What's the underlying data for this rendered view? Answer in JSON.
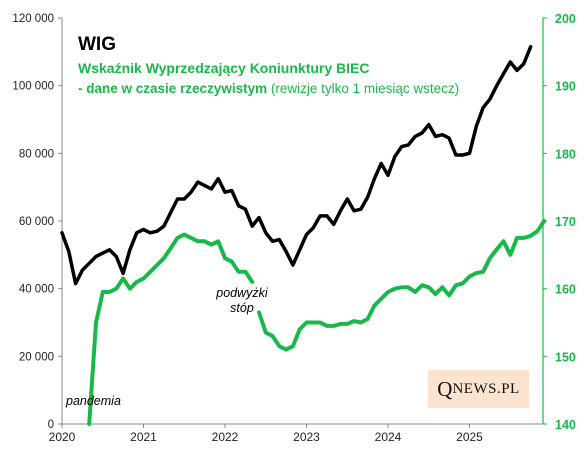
{
  "chart_data": {
    "type": "line",
    "title": "WIG",
    "subtitle": "Wskaźnik Wyprzedzający Koniunktury BIEC",
    "note_bold": "- dane w czasie rzeczywistym",
    "note_rest": " (rewizje tylko 1 miesiąc wstecz)",
    "x_ticks": [
      "2020",
      "2021",
      "2022",
      "2023",
      "2024",
      "2025"
    ],
    "y_left_ticks": [
      "0",
      "20 000",
      "40 000",
      "60 000",
      "80 000",
      "100 000",
      "120 000"
    ],
    "y_right_ticks": [
      "140",
      "150",
      "160",
      "170",
      "180",
      "190",
      "200"
    ],
    "y_left_lim": [
      0,
      120000
    ],
    "y_right_lim": [
      140,
      200
    ],
    "x_lim": [
      "2020-01",
      "2025-12"
    ],
    "grid": false,
    "colors": {
      "wig": "#000000",
      "biec": "#19b84a",
      "right_axis": "#19b84a",
      "logo_bg": "#fbe3cf"
    },
    "series": [
      {
        "name": "WIG",
        "axis": "left",
        "points": [
          [
            "2020-01",
            56500
          ],
          [
            "2020-02",
            51000
          ],
          [
            "2020-03",
            41500
          ],
          [
            "2020-04",
            45500
          ],
          [
            "2020-05",
            47500
          ],
          [
            "2020-06",
            49500
          ],
          [
            "2020-07",
            50500
          ],
          [
            "2020-08",
            51500
          ],
          [
            "2020-09",
            49500
          ],
          [
            "2020-10",
            44500
          ],
          [
            "2020-11",
            51500
          ],
          [
            "2020-12",
            56500
          ],
          [
            "2021-01",
            57500
          ],
          [
            "2021-02",
            56500
          ],
          [
            "2021-03",
            57000
          ],
          [
            "2021-04",
            58500
          ],
          [
            "2021-05",
            62500
          ],
          [
            "2021-06",
            66500
          ],
          [
            "2021-07",
            66500
          ],
          [
            "2021-08",
            68500
          ],
          [
            "2021-09",
            71500
          ],
          [
            "2021-10",
            70500
          ],
          [
            "2021-11",
            69500
          ],
          [
            "2021-12",
            72500
          ],
          [
            "2022-01",
            68500
          ],
          [
            "2022-02",
            69000
          ],
          [
            "2022-03",
            64500
          ],
          [
            "2022-04",
            63500
          ],
          [
            "2022-05",
            58500
          ],
          [
            "2022-06",
            61000
          ],
          [
            "2022-07",
            56500
          ],
          [
            "2022-08",
            54000
          ],
          [
            "2022-09",
            54500
          ],
          [
            "2022-10",
            51000
          ],
          [
            "2022-11",
            47000
          ],
          [
            "2022-12",
            51500
          ],
          [
            "2023-01",
            56000
          ],
          [
            "2023-02",
            58000
          ],
          [
            "2023-03",
            61500
          ],
          [
            "2023-04",
            61500
          ],
          [
            "2023-05",
            59000
          ],
          [
            "2023-06",
            63000
          ],
          [
            "2023-07",
            66500
          ],
          [
            "2023-08",
            63000
          ],
          [
            "2023-09",
            63500
          ],
          [
            "2023-10",
            67000
          ],
          [
            "2023-11",
            72500
          ],
          [
            "2023-12",
            77000
          ],
          [
            "2024-01",
            73500
          ],
          [
            "2024-02",
            79000
          ],
          [
            "2024-03",
            82000
          ],
          [
            "2024-04",
            82500
          ],
          [
            "2024-05",
            85000
          ],
          [
            "2024-06",
            86000
          ],
          [
            "2024-07",
            88500
          ],
          [
            "2024-08",
            85000
          ],
          [
            "2024-09",
            85500
          ],
          [
            "2024-10",
            84500
          ],
          [
            "2024-11",
            79500
          ],
          [
            "2024-12",
            79500
          ],
          [
            "2025-01",
            80000
          ],
          [
            "2025-02",
            88000
          ],
          [
            "2025-03",
            93500
          ],
          [
            "2025-04",
            96000
          ],
          [
            "2025-05",
            100000
          ],
          [
            "2025-06",
            103500
          ],
          [
            "2025-07",
            107000
          ],
          [
            "2025-08",
            104500
          ],
          [
            "2025-09",
            106500
          ],
          [
            "2025-10",
            111500
          ]
        ]
      },
      {
        "name": "Wskaźnik Wyprzedzający Koniunktury BIEC",
        "axis": "right",
        "segments": [
          [
            [
              "2020-05",
              140.0
            ],
            [
              "2020-06",
              155.0
            ],
            [
              "2020-07",
              159.5
            ],
            [
              "2020-08",
              159.5
            ],
            [
              "2020-09",
              160.0
            ],
            [
              "2020-10",
              161.5
            ],
            [
              "2020-11",
              160.0
            ],
            [
              "2020-12",
              161.0
            ],
            [
              "2021-01",
              161.5
            ],
            [
              "2021-02",
              162.5
            ],
            [
              "2021-03",
              163.5
            ],
            [
              "2021-04",
              164.5
            ],
            [
              "2021-05",
              166.0
            ],
            [
              "2021-06",
              167.5
            ],
            [
              "2021-07",
              168.0
            ],
            [
              "2021-08",
              167.5
            ],
            [
              "2021-09",
              167.0
            ],
            [
              "2021-10",
              167.0
            ],
            [
              "2021-11",
              166.5
            ],
            [
              "2021-12",
              167.0
            ],
            [
              "2022-01",
              164.5
            ],
            [
              "2022-02",
              164.0
            ],
            [
              "2022-03",
              162.5
            ],
            [
              "2022-04",
              162.5
            ],
            [
              "2022-05",
              161.0
            ]
          ],
          [
            [
              "2022-06",
              156.5
            ],
            [
              "2022-07",
              153.5
            ],
            [
              "2022-08",
              153.0
            ],
            [
              "2022-09",
              151.5
            ],
            [
              "2022-10",
              151.0
            ],
            [
              "2022-11",
              151.5
            ],
            [
              "2022-12",
              154.0
            ],
            [
              "2023-01",
              155.0
            ],
            [
              "2023-02",
              155.0
            ],
            [
              "2023-03",
              155.0
            ],
            [
              "2023-04",
              154.5
            ],
            [
              "2023-05",
              154.5
            ],
            [
              "2023-06",
              154.8
            ],
            [
              "2023-07",
              154.8
            ],
            [
              "2023-08",
              155.2
            ],
            [
              "2023-09",
              155.0
            ],
            [
              "2023-10",
              155.5
            ],
            [
              "2023-11",
              157.5
            ],
            [
              "2023-12",
              158.5
            ],
            [
              "2024-01",
              159.5
            ],
            [
              "2024-02",
              160.0
            ],
            [
              "2024-03",
              160.2
            ],
            [
              "2024-04",
              160.2
            ],
            [
              "2024-05",
              159.5
            ],
            [
              "2024-06",
              160.5
            ],
            [
              "2024-07",
              160.2
            ],
            [
              "2024-08",
              159.2
            ],
            [
              "2024-09",
              160.2
            ],
            [
              "2024-10",
              159.0
            ],
            [
              "2024-11",
              160.5
            ],
            [
              "2024-12",
              160.8
            ],
            [
              "2025-01",
              161.8
            ],
            [
              "2025-02",
              162.3
            ],
            [
              "2025-03",
              162.5
            ],
            [
              "2025-04",
              164.5
            ],
            [
              "2025-05",
              165.8
            ],
            [
              "2025-06",
              167.0
            ],
            [
              "2025-07",
              165.0
            ],
            [
              "2025-08",
              167.5
            ],
            [
              "2025-09",
              167.5
            ],
            [
              "2025-10",
              167.8
            ],
            [
              "2025-11",
              168.5
            ],
            [
              "2025-12",
              170.0
            ]
          ]
        ]
      }
    ],
    "annotations": [
      {
        "key": "pandemia",
        "text": "pandemia",
        "lines": [
          "pandemia"
        ]
      },
      {
        "key": "rates",
        "text": "podwyżki stóp",
        "lines": [
          "podwyżki",
          "stóp"
        ]
      }
    ]
  },
  "logo": {
    "q": "Q",
    "rest": "NEWS.PL"
  }
}
